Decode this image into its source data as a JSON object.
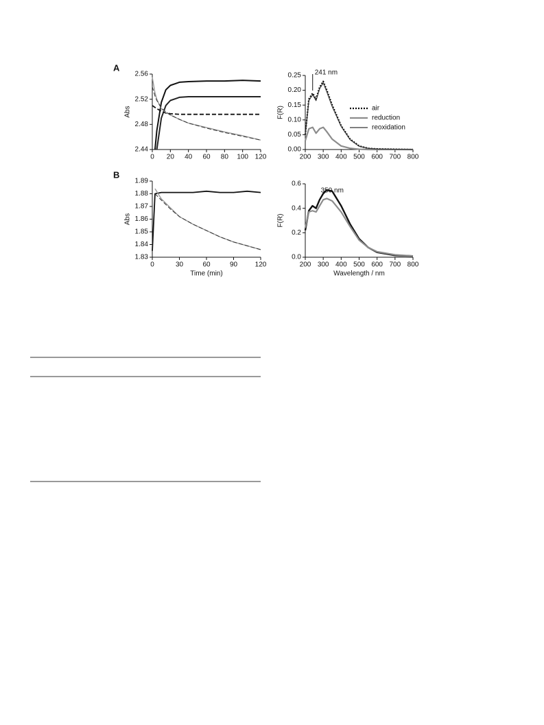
{
  "figure": {
    "panel_labels": [
      "A",
      "B"
    ]
  },
  "chart_data": [
    {
      "type": "line",
      "ylabel": "Abs",
      "x": [
        0,
        3,
        5,
        10,
        15,
        20,
        30,
        40,
        60,
        80,
        100,
        120
      ],
      "xlim": [
        0,
        120
      ],
      "xticks": [
        0,
        20,
        40,
        60,
        80,
        100,
        120
      ],
      "ylim": [
        2.44,
        2.56
      ],
      "yticks": [
        2.44,
        2.48,
        2.52,
        2.56
      ],
      "series": [
        {
          "color": "#111111",
          "width": 2,
          "values": [
            null,
            2.44,
            2.47,
            2.515,
            2.535,
            2.542,
            2.547,
            2.548,
            2.549,
            2.549,
            2.55,
            2.549
          ]
        },
        {
          "color": "#222222",
          "width": 2,
          "values": [
            null,
            null,
            2.44,
            2.49,
            2.51,
            2.518,
            2.523,
            2.524,
            2.524,
            2.524,
            2.524,
            2.524
          ]
        },
        {
          "color": "#111111",
          "width": 1.8,
          "style": "dashed",
          "values": [
            2.51,
            2.507,
            2.505,
            2.501,
            2.498,
            2.497,
            2.496,
            2.496,
            2.496,
            2.496,
            2.496,
            2.496
          ]
        },
        {
          "color": "#999999",
          "width": 1.4,
          "values": [
            2.555,
            2.53,
            2.52,
            2.505,
            2.499,
            2.495,
            2.488,
            2.482,
            2.475,
            2.468,
            2.462,
            2.455
          ]
        },
        {
          "color": "#333333",
          "width": 1,
          "style": "dashed",
          "values": [
            2.54,
            2.525,
            2.518,
            2.506,
            2.5,
            2.495,
            2.488,
            2.482,
            2.474,
            2.467,
            2.461,
            2.455
          ]
        }
      ]
    },
    {
      "type": "line",
      "ylabel": "F(R)",
      "legend": "right",
      "x": [
        200,
        220,
        241,
        260,
        280,
        300,
        320,
        350,
        400,
        450,
        500,
        550,
        600,
        700,
        800
      ],
      "xlim": [
        200,
        800
      ],
      "xticks": [
        200,
        300,
        400,
        500,
        600,
        700,
        800
      ],
      "ylim": [
        0,
        0.25
      ],
      "yticks": [
        {
          "value": 0,
          "label": "0.00"
        },
        0.05,
        {
          "value": 0.1,
          "label": "0.10"
        },
        0.15,
        {
          "value": 0.2,
          "label": "0.20"
        },
        0.25
      ],
      "annotations": [
        {
          "text": "241 nm",
          "x": 241,
          "line": true
        }
      ],
      "series": [
        {
          "name": "air",
          "color": "#000000",
          "width": 2.2,
          "style": "dotted",
          "values": [
            0.05,
            0.17,
            0.19,
            0.17,
            0.21,
            0.23,
            0.2,
            0.15,
            0.08,
            0.035,
            0.012,
            0.004,
            0.002,
            0.001,
            0
          ]
        },
        {
          "name": "reduction",
          "color": "#8c8c8c",
          "width": 2.2,
          "values": [
            0.03,
            0.07,
            0.075,
            0.055,
            0.07,
            0.075,
            0.06,
            0.035,
            0.012,
            0.004,
            0.001,
            0,
            0,
            0,
            0
          ]
        },
        {
          "name": "reoxidation",
          "color": "#333333",
          "width": 1.2,
          "values": [
            0.05,
            0.165,
            0.185,
            0.165,
            0.205,
            0.225,
            0.195,
            0.145,
            0.078,
            0.033,
            0.011,
            0.004,
            0.002,
            0.001,
            0
          ]
        }
      ]
    },
    {
      "type": "line",
      "ylabel": "Abs",
      "xlabel": "Time (min)",
      "x": [
        0,
        3,
        10,
        20,
        30,
        45,
        60,
        75,
        90,
        105,
        120
      ],
      "xlim": [
        0,
        120
      ],
      "xticks": [
        0,
        30,
        60,
        90,
        120
      ],
      "ylim": [
        1.83,
        1.89
      ],
      "yticks": [
        1.83,
        1.84,
        1.85,
        1.86,
        1.87,
        1.88,
        1.89
      ],
      "series": [
        {
          "color": "#111111",
          "width": 1.8,
          "values": [
            1.835,
            1.88,
            1.881,
            1.881,
            1.881,
            1.881,
            1.882,
            1.881,
            1.881,
            1.882,
            1.881
          ]
        },
        {
          "color": "#999999",
          "width": 1.4,
          "values": [
            null,
            1.884,
            1.876,
            1.869,
            1.862,
            1.856,
            1.851,
            1.846,
            1.842,
            1.839,
            1.836
          ]
        },
        {
          "color": "#333333",
          "width": 1,
          "style": "dashed",
          "values": [
            null,
            1.88,
            1.875,
            1.868,
            1.862,
            1.856,
            1.851,
            1.846,
            1.842,
            1.839,
            1.836
          ]
        }
      ]
    },
    {
      "type": "line",
      "ylabel": "F(R)",
      "xlabel": "Wavelength / nm",
      "x": [
        200,
        220,
        240,
        260,
        280,
        300,
        320,
        350,
        400,
        450,
        500,
        550,
        600,
        700,
        800
      ],
      "xlim": [
        200,
        800
      ],
      "xticks": [
        200,
        300,
        400,
        500,
        600,
        700,
        800
      ],
      "ylim": [
        0,
        0.6
      ],
      "yticks": [
        {
          "value": 0,
          "label": "0.0"
        },
        0.2,
        0.4,
        0.6
      ],
      "annotations": [
        {
          "text": "350 nm",
          "x": 350,
          "line": false
        }
      ],
      "series": [
        {
          "color": "#111111",
          "width": 2.4,
          "values": [
            0.22,
            0.38,
            0.42,
            0.4,
            0.47,
            0.52,
            0.55,
            0.54,
            0.42,
            0.27,
            0.15,
            0.08,
            0.04,
            0.015,
            0.01
          ]
        },
        {
          "color": "#8c8c8c",
          "width": 2.2,
          "values": [
            0.24,
            0.37,
            0.38,
            0.37,
            0.42,
            0.47,
            0.48,
            0.46,
            0.37,
            0.25,
            0.14,
            0.08,
            0.045,
            0.02,
            0.01
          ]
        }
      ]
    }
  ]
}
